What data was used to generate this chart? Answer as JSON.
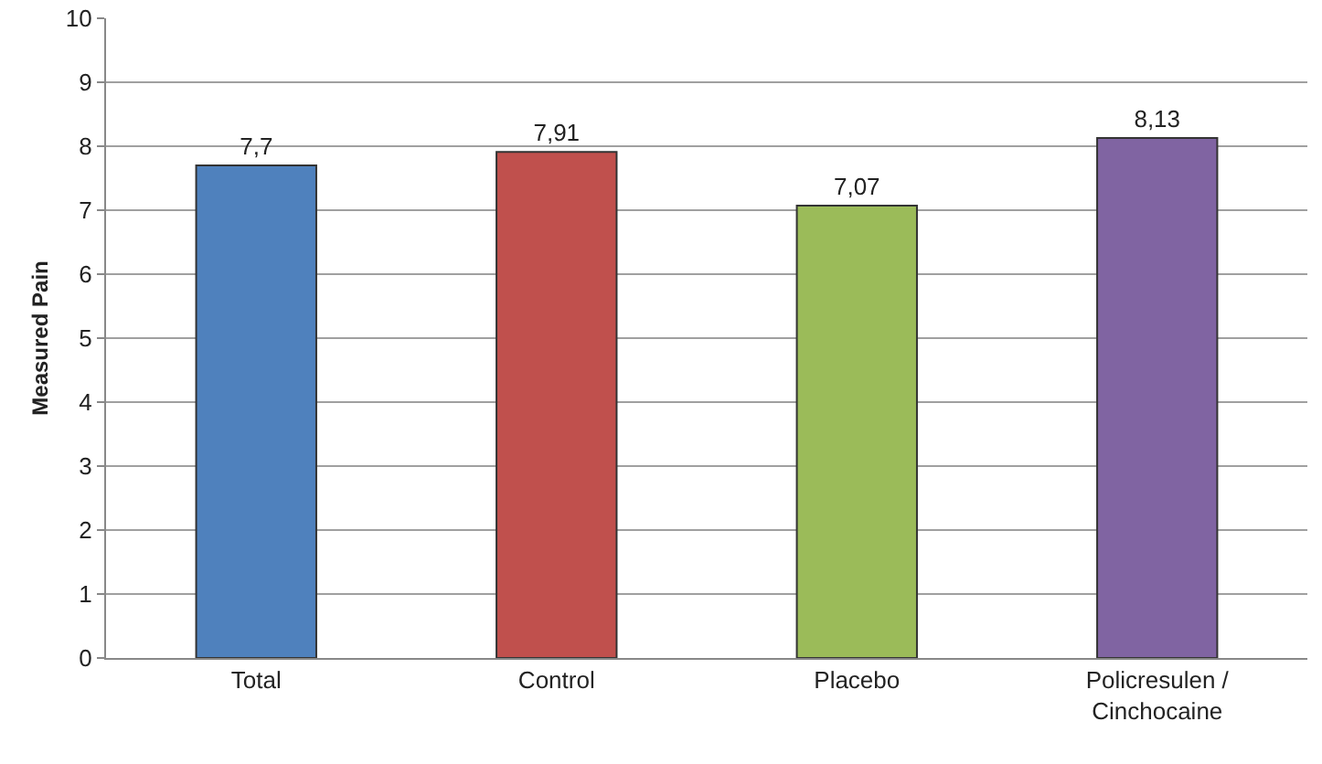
{
  "chart_data": {
    "type": "bar",
    "ylabel": "Measured Pain",
    "categories": [
      "Total",
      "Control",
      "Placebo",
      "Policresulen /\nCinchocaine"
    ],
    "values": [
      7.7,
      7.91,
      7.07,
      8.13
    ],
    "colors": [
      "#4f81bd",
      "#c0504d",
      "#9bbb59",
      "#8064a2"
    ],
    "value_labels": [
      "7,7",
      "7,91",
      "7,07",
      "8,13"
    ],
    "ylim": [
      0,
      10
    ],
    "yticks": [
      0,
      1,
      2,
      3,
      4,
      5,
      6,
      7,
      8,
      9,
      10
    ],
    "grid": "y",
    "legend": false
  }
}
